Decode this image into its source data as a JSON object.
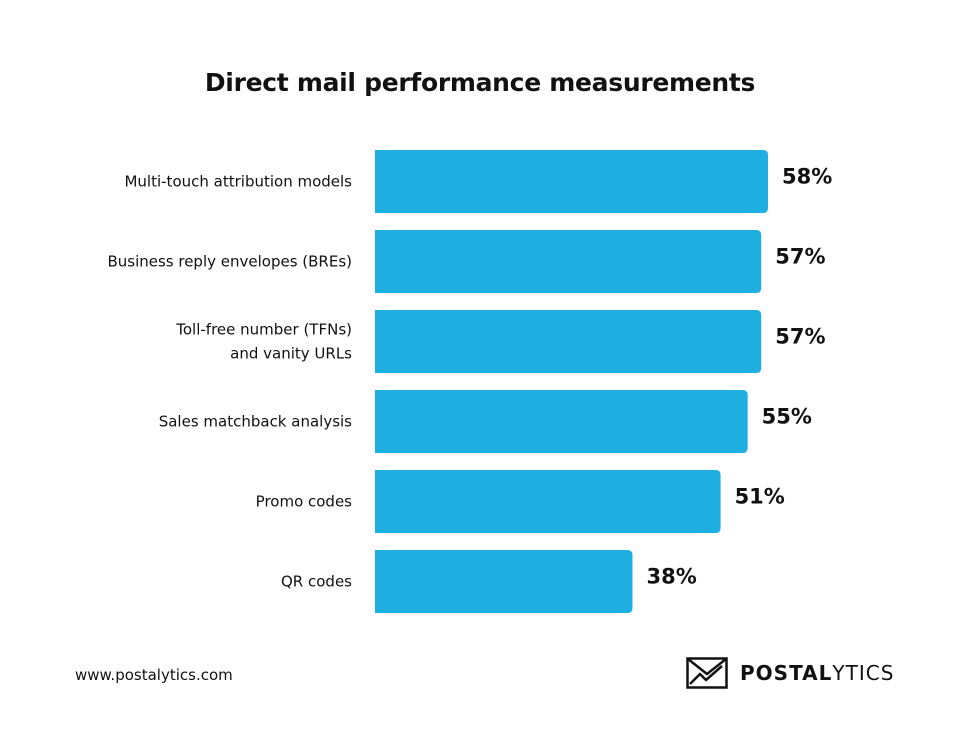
{
  "chart_data": {
    "type": "bar",
    "orientation": "horizontal",
    "title": "Direct mail performance measurements",
    "categories": [
      [
        "Multi-touch attribution models"
      ],
      [
        "Business reply envelopes (BREs)"
      ],
      [
        "Toll-free number (TFNs)",
        "and vanity URLs"
      ],
      [
        "Sales matchback analysis"
      ],
      [
        "Promo codes"
      ],
      [
        "QR codes"
      ]
    ],
    "values": [
      58,
      57,
      57,
      55,
      51,
      38
    ],
    "value_labels": [
      "58%",
      "57%",
      "57%",
      "55%",
      "51%",
      "38%"
    ],
    "unit": "%",
    "bar_color": "#1eaee0",
    "grid": false,
    "legend": "none"
  },
  "footer": {
    "url": "www.postalytics.com",
    "brand_part1": "POSTAL",
    "brand_part2": "YTICS",
    "logo_icon": "envelope-chart-icon"
  }
}
